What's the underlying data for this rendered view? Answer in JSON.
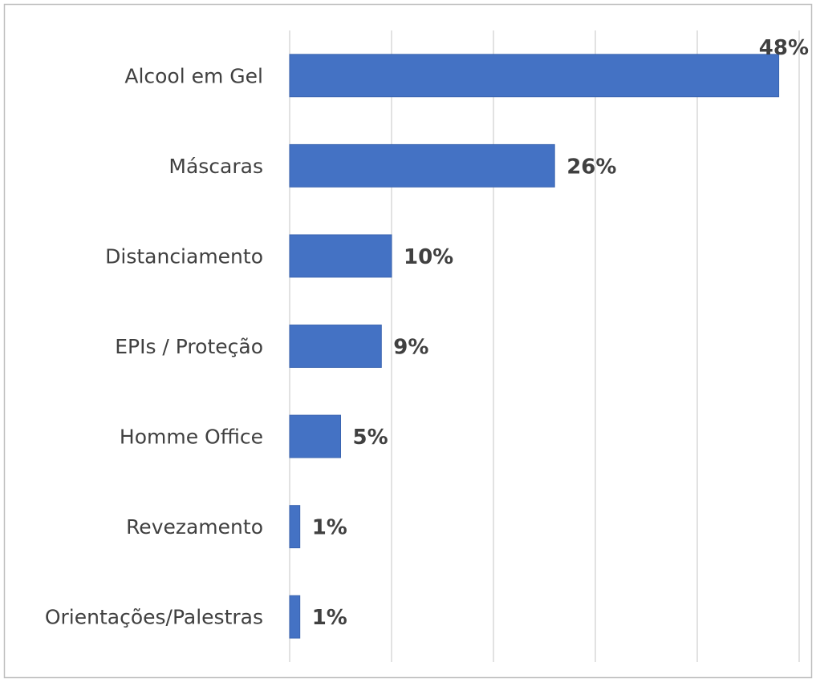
{
  "chart_data": {
    "type": "bar",
    "orientation": "horizontal",
    "categories": [
      "Alcool em Gel",
      "Máscaras",
      "Distanciamento",
      "EPIs / Proteção",
      "Homme Office",
      "Revezamento",
      "Orientações/Palestras"
    ],
    "values": [
      48,
      26,
      10,
      9,
      5,
      1,
      1
    ],
    "value_labels": [
      "48%",
      "26%",
      "10%",
      "9%",
      "5%",
      "1%",
      "1%"
    ],
    "color": "#4472c4",
    "xlim": [
      0,
      50
    ],
    "xticks": [
      0,
      10,
      20,
      30,
      40,
      50
    ],
    "grid": true
  }
}
